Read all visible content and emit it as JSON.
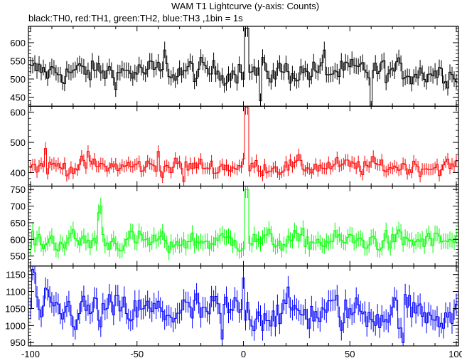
{
  "title": "WAM T1 Lightcurve (y-axis: Counts)",
  "subtitle": "black:TH0, red:TH1, green:TH2, blue:TH3 ,1bin = 1s",
  "chart_data": {
    "type": "line",
    "x_ticks": [
      -100,
      -50,
      0,
      50,
      100
    ],
    "xlim": [
      -101,
      101
    ],
    "panels": [
      {
        "name": "TH0",
        "color": "#000000",
        "ylim": [
          425,
          645
        ],
        "yticks": [
          450,
          500,
          550,
          600
        ],
        "base": 520,
        "noise": 22,
        "spikes": [
          [
            1,
            640
          ],
          [
            2,
            640
          ],
          [
            60,
            420
          ],
          [
            -2,
            540
          ],
          [
            38,
            580
          ],
          [
            -37,
            580
          ],
          [
            8,
            440
          ]
        ]
      },
      {
        "name": "TH1",
        "color": "#ff0000",
        "ylim": [
          355,
          620
        ],
        "yticks": [
          400,
          500,
          600
        ],
        "base": 420,
        "noise": 18,
        "spikes": [
          [
            1,
            615
          ],
          [
            2,
            615
          ],
          [
            -93,
            480
          ],
          [
            -73,
            470
          ],
          [
            -40,
            470
          ],
          [
            -28,
            370
          ]
        ]
      },
      {
        "name": "TH2",
        "color": "#00ff00",
        "ylim": [
          520,
          760
        ],
        "yticks": [
          550,
          600,
          650,
          700,
          750
        ],
        "base": 595,
        "noise": 20,
        "spikes": [
          [
            -67,
            700
          ],
          [
            -68,
            680
          ],
          [
            1,
            750
          ],
          [
            2,
            750
          ],
          [
            -35,
            560
          ]
        ]
      },
      {
        "name": "TH3",
        "color": "#0000ff",
        "ylim": [
          940,
          1175
        ],
        "yticks": [
          950,
          1000,
          1050,
          1100,
          1150
        ],
        "base": 1040,
        "noise": 35,
        "spikes": [
          [
            -99,
            1165
          ],
          [
            -98,
            1155
          ],
          [
            -10,
            960
          ],
          [
            0,
            1140
          ],
          [
            75,
            950
          ]
        ]
      }
    ]
  }
}
